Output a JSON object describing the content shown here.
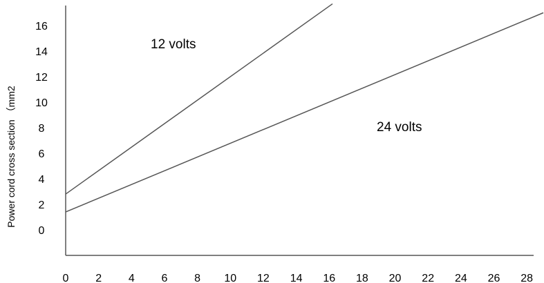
{
  "chart_data": {
    "type": "line",
    "title": "",
    "xlabel": "",
    "ylabel": "Power cord cross section （mm2",
    "xlim": [
      0,
      29
    ],
    "ylim": [
      -2,
      18
    ],
    "x_ticks": [
      "0",
      "2",
      "4",
      "6",
      "8",
      "10",
      "12",
      "14",
      "16",
      "18",
      "20",
      "22",
      "24",
      "26",
      "28"
    ],
    "y_ticks": [
      "0",
      "2",
      "4",
      "6",
      "8",
      "10",
      "12",
      "14",
      "16"
    ],
    "grid": false,
    "series": [
      {
        "name": "12 volts",
        "x": [
          0,
          16.2
        ],
        "y": [
          2.8,
          17.7
        ]
      },
      {
        "name": "24 volts",
        "x": [
          0,
          29
        ],
        "y": [
          1.4,
          17.0
        ]
      }
    ],
    "colors": {
      "axis": "#555555",
      "line": "#555555",
      "text": "#000000"
    }
  }
}
